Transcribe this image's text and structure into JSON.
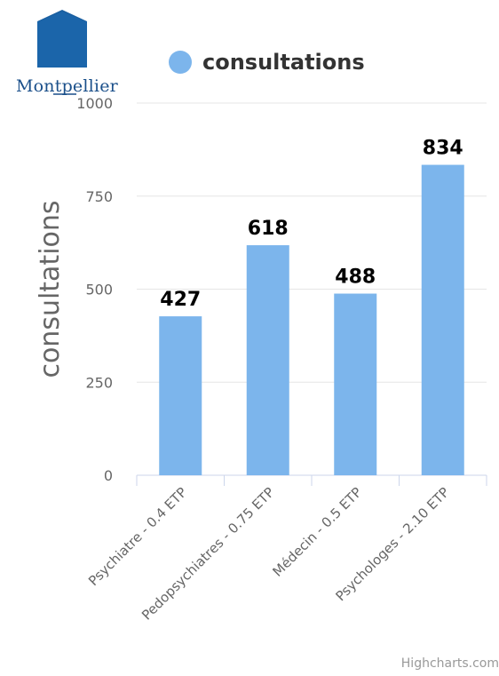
{
  "logo": {
    "text": "Montpellier"
  },
  "legend": {
    "label": "consultations",
    "color": "#7cb5ec"
  },
  "credits": "Highcharts.com",
  "chart_data": {
    "type": "bar",
    "categories": [
      "Psychiatre - 0.4 ETP",
      "Pedopsychiatres - 0.75 ETP",
      "Médecin - 0.5 ETP",
      "Psychologes - 2.10 ETP"
    ],
    "series": [
      {
        "name": "consultations",
        "values": [
          427,
          618,
          488,
          834
        ]
      }
    ],
    "ylabel": "consultations",
    "ylim": [
      0,
      1000
    ],
    "yticks": [
      0,
      250,
      500,
      750,
      1000
    ],
    "grid": true,
    "legend_position": "top",
    "bar_color": "#7cb5ec"
  }
}
